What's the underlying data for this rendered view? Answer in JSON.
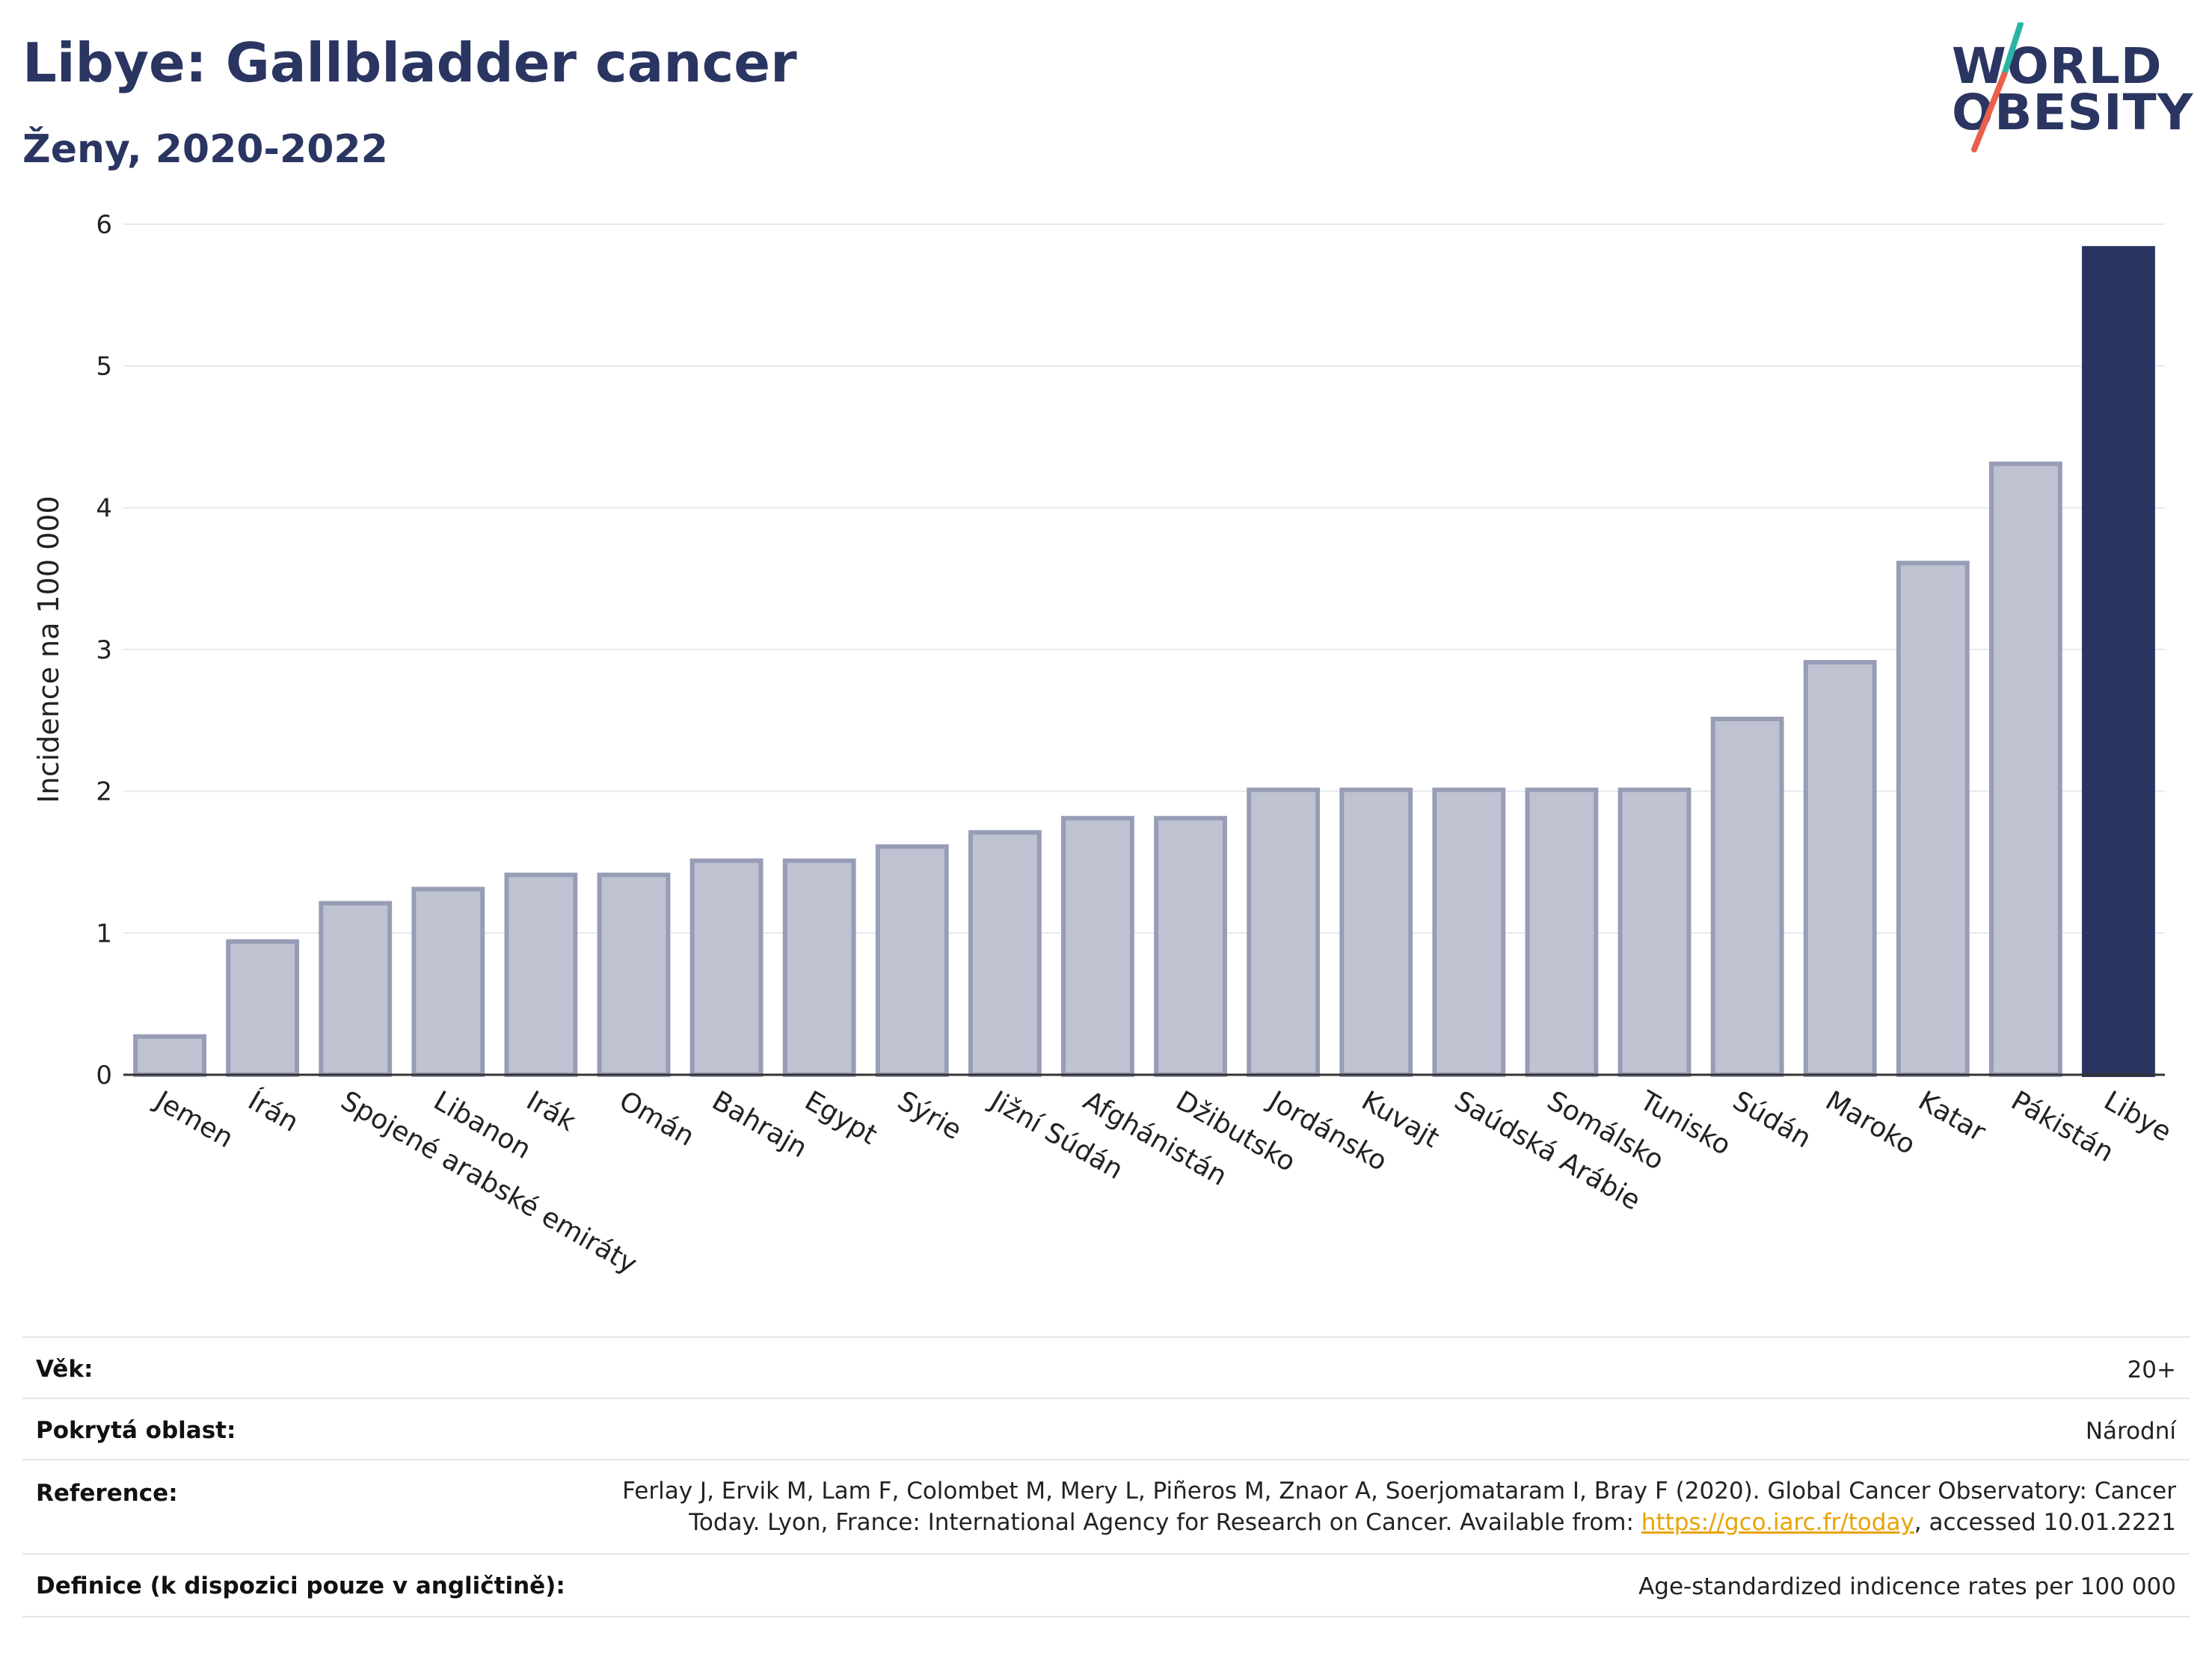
{
  "header": {
    "title": "Libye: Gallbladder cancer",
    "subtitle": "Ženy, 2020-2022"
  },
  "logo": {
    "line1": "WORLD",
    "line2": "OBESITY",
    "accent_colors": [
      "#2bb3a6",
      "#e8604c"
    ]
  },
  "colors": {
    "highlight": "#2a3561",
    "bar": "#bfc3d1",
    "bar_edge": "#979db6",
    "grid": "#e6e8ee"
  },
  "chart_data": {
    "type": "bar",
    "ylabel": "Incidence na 100 000",
    "ylim": [
      0,
      6
    ],
    "yticks": [
      "0",
      "1",
      "2",
      "3",
      "4",
      "5",
      "6"
    ],
    "grid": true,
    "highlight": "Libye",
    "categories": [
      "Jemen",
      "Írán",
      "Spojené arabské emiráty",
      "Libanon",
      "Irák",
      "Omán",
      "Bahrajn",
      "Egypt",
      "Sýrie",
      "Jižní Súdán",
      "Afghánistán",
      "Džibutsko",
      "Jordánsko",
      "Kuvajt",
      "Saúdská Arábie",
      "Somálsko",
      "Tunisko",
      "Súdán",
      "Maroko",
      "Katar",
      "Pákistán",
      "Libye"
    ],
    "values": [
      0.27,
      0.94,
      1.21,
      1.31,
      1.41,
      1.41,
      1.51,
      1.51,
      1.61,
      1.71,
      1.81,
      1.81,
      2.01,
      2.01,
      2.01,
      2.01,
      2.01,
      2.51,
      2.91,
      3.61,
      4.31,
      5.83
    ]
  },
  "info": {
    "age": {
      "label": "Věk:",
      "value": "20+"
    },
    "coverage": {
      "label": "Pokrytá oblast:",
      "value": "Národní"
    },
    "reference": {
      "label": "Reference:",
      "line1": "Ferlay J, Ervik M, Lam F, Colombet M, Mery L, Piñeros M, Znaor A, Soerjomataram I, Bray F (2020). Global Cancer Observatory: Cancer",
      "line2_before": "Today. Lyon, France: International Agency for Research on Cancer. Available from: ",
      "link": "https://gco.iarc.fr/today",
      "line2_after": ", accessed 10.01.2221"
    },
    "definition": {
      "label": "Definice (k dispozici pouze v angličtině):",
      "value": "Age-standardized indicence rates per 100 000"
    }
  }
}
